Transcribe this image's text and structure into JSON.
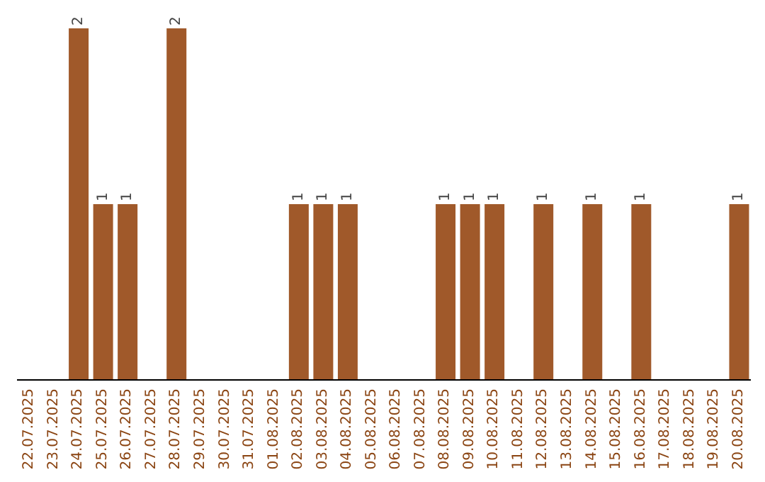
{
  "chart_data": {
    "type": "bar",
    "categories": [
      "22.07.2025",
      "23.07.2025",
      "24.07.2025",
      "25.07.2025",
      "26.07.2025",
      "27.07.2025",
      "28.07.2025",
      "29.07.2025",
      "30.07.2025",
      "31.07.2025",
      "01.08.2025",
      "02.08.2025",
      "03.08.2025",
      "04.08.2025",
      "05.08.2025",
      "06.08.2025",
      "07.08.2025",
      "08.08.2025",
      "09.08.2025",
      "10.08.2025",
      "11.08.2025",
      "12.08.2025",
      "13.08.2025",
      "14.08.2025",
      "15.08.2025",
      "16.08.2025",
      "17.08.2025",
      "18.08.2025",
      "19.08.2025",
      "20.08.2025"
    ],
    "values": [
      0,
      0,
      2,
      1,
      1,
      0,
      2,
      0,
      0,
      0,
      0,
      1,
      1,
      1,
      0,
      0,
      0,
      1,
      1,
      1,
      0,
      1,
      0,
      1,
      0,
      1,
      0,
      0,
      0,
      1
    ],
    "value_labels": [
      null,
      null,
      "2",
      "1",
      "1",
      null,
      "2",
      null,
      null,
      null,
      null,
      "1",
      "1",
      "1",
      null,
      null,
      null,
      "1",
      "1",
      "1",
      null,
      "1",
      null,
      "1",
      null,
      "1",
      null,
      null,
      null,
      "1"
    ],
    "color": "#a0592a",
    "grid": false,
    "legend": false
  }
}
